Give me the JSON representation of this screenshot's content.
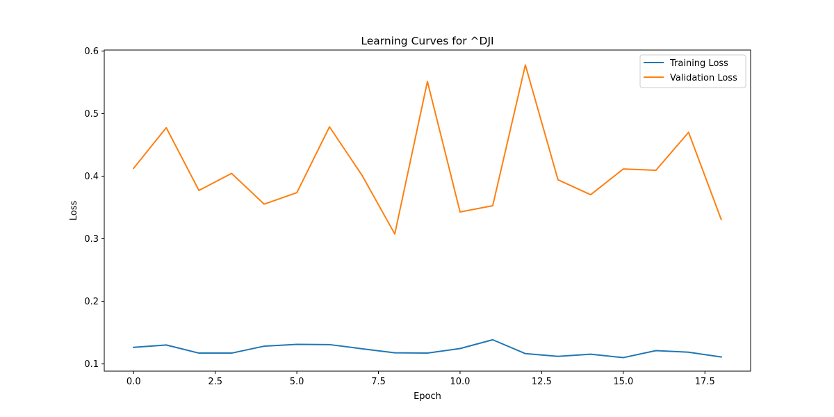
{
  "chart_data": {
    "type": "line",
    "title": "Learning Curves for ^DJI",
    "xlabel": "Epoch",
    "ylabel": "Loss",
    "x": [
      0,
      1,
      2,
      3,
      4,
      5,
      6,
      7,
      8,
      9,
      10,
      11,
      12,
      13,
      14,
      15,
      16,
      17,
      18
    ],
    "xlim": [
      -0.9,
      18.9
    ],
    "ylim": [
      0.0885,
      0.6015
    ],
    "xticks": [
      0.0,
      2.5,
      5.0,
      7.5,
      10.0,
      12.5,
      15.0,
      17.5
    ],
    "xtick_labels": [
      "0.0",
      "2.5",
      "5.0",
      "7.5",
      "10.0",
      "12.5",
      "15.0",
      "17.5"
    ],
    "yticks": [
      0.1,
      0.2,
      0.3,
      0.4,
      0.5,
      0.6
    ],
    "ytick_labels": [
      "0.1",
      "0.2",
      "0.3",
      "0.4",
      "0.5",
      "0.6"
    ],
    "grid": false,
    "legend_position": "top-right",
    "series": [
      {
        "name": "Training Loss",
        "color": "#1f77b4",
        "values": [
          0.1265,
          0.1303,
          0.1173,
          0.1173,
          0.1284,
          0.1313,
          0.1309,
          0.1242,
          0.1178,
          0.1174,
          0.1246,
          0.1386,
          0.1165,
          0.1121,
          0.1156,
          0.1101,
          0.1213,
          0.1187,
          0.1111
        ]
      },
      {
        "name": "Validation Loss",
        "color": "#ff7f0e",
        "values": [
          0.4126,
          0.4774,
          0.3772,
          0.4044,
          0.3553,
          0.3736,
          0.4788,
          0.4011,
          0.3076,
          0.5513,
          0.3428,
          0.3528,
          0.5776,
          0.3942,
          0.3703,
          0.4115,
          0.4094,
          0.4701,
          0.3308
        ]
      }
    ]
  }
}
